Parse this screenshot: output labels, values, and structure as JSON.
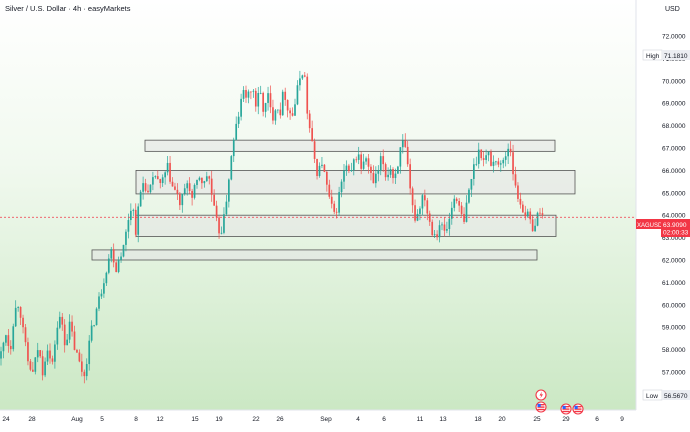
{
  "header": {
    "title": "Silver / U.S. Dollar · 4h · easyMarkets",
    "currency": "USD"
  },
  "badges": {
    "high_label": "High",
    "high_value": "71.1810",
    "low_label": "Low",
    "low_value": "56.5670",
    "symbol": "XAGUSD",
    "last_price": "63.9090",
    "countdown": "02:00:33"
  },
  "colors": {
    "bg_top": "#ffffff",
    "bg_bottom": "#cfe9c8",
    "up_candle": "#27a69a",
    "down_candle": "#ef5350",
    "zone_fill": "#e4e4e4",
    "zone_stroke": "#555555",
    "price_tag": "#f23645",
    "axis_text": "#131722"
  },
  "chart_data": {
    "type": "candlestick",
    "ylim": [
      55.8,
      72.6
    ],
    "y_ticks": [
      "72.0000",
      "71.0000",
      "70.0000",
      "69.0000",
      "68.0000",
      "67.0000",
      "66.0000",
      "65.0000",
      "64.0000",
      "63.0000",
      "62.0000",
      "61.0000",
      "60.0000",
      "59.0000",
      "58.0000",
      "57.0000"
    ],
    "x_ticks": [
      "24",
      "28",
      "Aug",
      "5",
      "8",
      "10",
      "12",
      "15",
      "17",
      "19",
      "22",
      "24",
      "26",
      "Sep",
      "4",
      "6",
      "8",
      "11",
      "13",
      "15",
      "18",
      "20",
      "22",
      "25",
      "29",
      "Oct",
      "6",
      "9"
    ],
    "price_path": [
      [
        0,
        57.6
      ],
      [
        6,
        58.8
      ],
      [
        10,
        57.9
      ],
      [
        14,
        59.6
      ],
      [
        19,
        60.2
      ],
      [
        23,
        58.8
      ],
      [
        28,
        57.4
      ],
      [
        33,
        56.9
      ],
      [
        38,
        58.1
      ],
      [
        43,
        57.0
      ],
      [
        47,
        58.3
      ],
      [
        52,
        57.1
      ],
      [
        56,
        58.8
      ],
      [
        61,
        59.5
      ],
      [
        65,
        58.3
      ],
      [
        70,
        59.1
      ],
      [
        75,
        58.0
      ],
      [
        80,
        57.3
      ],
      [
        84,
        56.8
      ],
      [
        88,
        58.0
      ],
      [
        92,
        58.9
      ],
      [
        96,
        59.7
      ],
      [
        100,
        60.4
      ],
      [
        104,
        61.2
      ],
      [
        108,
        62.0
      ],
      [
        112,
        62.5
      ],
      [
        116,
        61.6
      ],
      [
        120,
        62.3
      ],
      [
        124,
        62.6
      ],
      [
        128,
        63.8
      ],
      [
        132,
        64.6
      ],
      [
        136,
        63.3
      ],
      [
        140,
        64.9
      ],
      [
        144,
        65.6
      ],
      [
        148,
        64.9
      ],
      [
        152,
        65.3
      ],
      [
        156,
        65.9
      ],
      [
        160,
        65.2
      ],
      [
        164,
        65.7
      ],
      [
        168,
        66.1
      ],
      [
        172,
        65.3
      ],
      [
        176,
        65.0
      ],
      [
        180,
        64.5
      ],
      [
        184,
        64.9
      ],
      [
        188,
        65.6
      ],
      [
        192,
        64.7
      ],
      [
        196,
        65.3
      ],
      [
        200,
        65.8
      ],
      [
        204,
        65.3
      ],
      [
        208,
        66.0
      ],
      [
        212,
        64.8
      ],
      [
        216,
        63.7
      ],
      [
        220,
        63.2
      ],
      [
        224,
        63.8
      ],
      [
        228,
        65.4
      ],
      [
        232,
        66.8
      ],
      [
        236,
        67.9
      ],
      [
        240,
        68.8
      ],
      [
        244,
        69.6
      ],
      [
        248,
        69.2
      ],
      [
        252,
        69.8
      ],
      [
        256,
        68.9
      ],
      [
        260,
        69.5
      ],
      [
        264,
        68.6
      ],
      [
        268,
        69.3
      ],
      [
        272,
        68.3
      ],
      [
        276,
        69.0
      ],
      [
        280,
        68.6
      ],
      [
        284,
        69.6
      ],
      [
        288,
        68.8
      ],
      [
        292,
        68.4
      ],
      [
        296,
        69.2
      ],
      [
        300,
        70.2
      ],
      [
        304,
        70.6
      ],
      [
        307,
        68.7
      ],
      [
        311,
        67.4
      ],
      [
        314,
        66.6
      ],
      [
        318,
        65.8
      ],
      [
        322,
        66.4
      ],
      [
        326,
        65.4
      ],
      [
        330,
        64.6
      ],
      [
        334,
        63.9
      ],
      [
        338,
        64.6
      ],
      [
        342,
        65.6
      ],
      [
        346,
        66.2
      ],
      [
        350,
        65.6
      ],
      [
        354,
        66.4
      ],
      [
        358,
        66.8
      ],
      [
        362,
        66.0
      ],
      [
        366,
        66.6
      ],
      [
        370,
        65.8
      ],
      [
        374,
        65.4
      ],
      [
        378,
        65.9
      ],
      [
        382,
        66.6
      ],
      [
        386,
        65.7
      ],
      [
        390,
        66.2
      ],
      [
        394,
        65.6
      ],
      [
        398,
        66.4
      ],
      [
        402,
        67.2
      ],
      [
        406,
        66.8
      ],
      [
        409,
        65.4
      ],
      [
        412,
        64.4
      ],
      [
        416,
        63.8
      ],
      [
        420,
        64.5
      ],
      [
        424,
        65.1
      ],
      [
        428,
        64.0
      ],
      [
        432,
        63.4
      ],
      [
        436,
        63.1
      ],
      [
        440,
        63.7
      ],
      [
        444,
        63.2
      ],
      [
        448,
        63.5
      ],
      [
        452,
        64.4
      ],
      [
        456,
        65.0
      ],
      [
        460,
        64.1
      ],
      [
        464,
        63.6
      ],
      [
        468,
        64.9
      ],
      [
        472,
        65.8
      ],
      [
        476,
        66.5
      ],
      [
        480,
        67.0
      ],
      [
        484,
        66.4
      ],
      [
        488,
        66.8
      ],
      [
        492,
        66.2
      ],
      [
        496,
        66.6
      ],
      [
        500,
        66.1
      ],
      [
        504,
        66.5
      ],
      [
        507,
        66.9
      ],
      [
        510,
        67.2
      ],
      [
        513,
        66.0
      ],
      [
        516,
        65.0
      ],
      [
        520,
        64.6
      ],
      [
        524,
        64.2
      ],
      [
        528,
        63.9
      ],
      [
        532,
        63.5
      ],
      [
        536,
        63.7
      ],
      [
        540,
        64.3
      ],
      [
        543,
        63.9
      ]
    ],
    "zones": [
      [
        145,
        555,
        67.35,
        66.85
      ],
      [
        136,
        575,
        66.0,
        64.95
      ],
      [
        136,
        556,
        64.0,
        63.05
      ],
      [
        92,
        537,
        62.45,
        62.0
      ]
    ]
  },
  "icons": [
    "lightning-event-icon",
    "us-flag-event-icon",
    "us-flag-event-icon",
    "us-flag-event-icon"
  ]
}
